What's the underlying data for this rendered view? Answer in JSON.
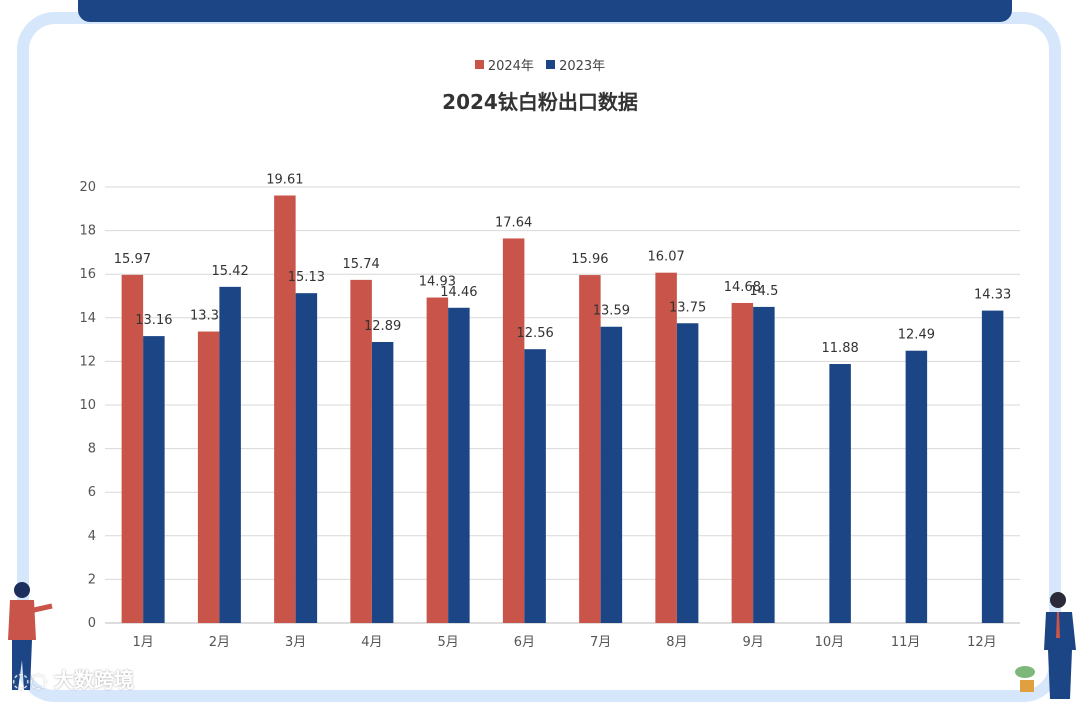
{
  "chart_data": {
    "type": "bar",
    "title": "2024钛白粉出口数据",
    "categories": [
      "1月",
      "2月",
      "3月",
      "4月",
      "5月",
      "6月",
      "7月",
      "8月",
      "9月",
      "10月",
      "11月",
      "12月"
    ],
    "series": [
      {
        "name": "2024年",
        "color": "#c9554a",
        "values": [
          15.97,
          13.37,
          19.61,
          15.74,
          14.93,
          17.64,
          15.96,
          16.07,
          14.68,
          null,
          null,
          null
        ]
      },
      {
        "name": "2023年",
        "color": "#1c4585",
        "values": [
          13.16,
          15.42,
          15.13,
          12.89,
          14.46,
          12.56,
          13.59,
          13.75,
          14.5,
          11.88,
          12.49,
          14.33
        ]
      }
    ],
    "ylim": [
      0,
      20
    ],
    "yticks": [
      0,
      2,
      4,
      6,
      8,
      10,
      12,
      14,
      16,
      18,
      20
    ],
    "grid": true,
    "legend": "top-center"
  },
  "branding": {
    "watermark": "大数跨境"
  },
  "frame_colors": {
    "border": "#d6e6fb",
    "topbar": "#1c4585"
  }
}
